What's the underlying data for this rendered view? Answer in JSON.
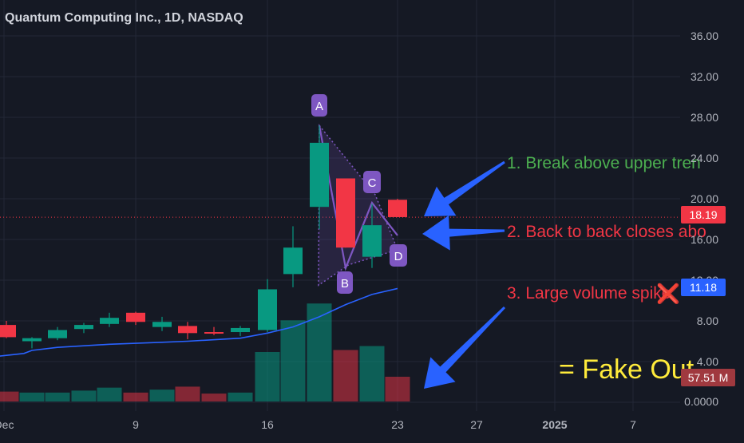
{
  "header": {
    "title": "Quantum Computing Inc., 1D, NASDAQ"
  },
  "colors": {
    "background": "#151924",
    "up": "#089981",
    "down": "#f23645",
    "ma": "#2962ff",
    "pattern": "#7e57c2",
    "arrow": "#2962ff",
    "annotation_green": "#4caf50",
    "annotation_red": "#f23645",
    "fake_out": "#ffeb3b"
  },
  "chart_data": {
    "type": "candlestick",
    "title": "Quantum Computing Inc., 1D, NASDAQ",
    "y_ticks": [
      "36.00",
      "32.00",
      "28.00",
      "24.00",
      "20.00",
      "16.00",
      "12.00",
      "8.00",
      "4.00",
      "0.0000"
    ],
    "x_ticks": [
      "Dec",
      "9",
      "16",
      "23",
      "27",
      "2025",
      "7"
    ],
    "ylim": [
      0,
      38
    ],
    "grid": true,
    "candles": [
      {
        "date": "Dec 5",
        "open": 7.6,
        "high": 8.0,
        "low": 6.3,
        "close": 6.4
      },
      {
        "date": "Dec 6",
        "open": 6.0,
        "high": 6.4,
        "low": 5.3,
        "close": 6.3
      },
      {
        "date": "Dec 9",
        "open": 6.3,
        "high": 7.4,
        "low": 6.1,
        "close": 7.1
      },
      {
        "date": "Dec 10",
        "open": 7.2,
        "high": 7.8,
        "low": 6.8,
        "close": 7.6
      },
      {
        "date": "Dec 11",
        "open": 7.7,
        "high": 8.8,
        "low": 7.4,
        "close": 8.3
      },
      {
        "date": "Dec 12",
        "open": 8.8,
        "high": 8.9,
        "low": 7.6,
        "close": 7.9
      },
      {
        "date": "Dec 13",
        "open": 7.4,
        "high": 8.4,
        "low": 7.0,
        "close": 7.9
      },
      {
        "date": "Dec 16",
        "open": 7.5,
        "high": 7.9,
        "low": 6.2,
        "close": 6.8
      },
      {
        "date": "Dec 17",
        "open": 6.9,
        "high": 7.4,
        "low": 6.6,
        "close": 6.8
      },
      {
        "date": "Dec 18",
        "open": 6.9,
        "high": 7.5,
        "low": 6.5,
        "close": 7.3
      },
      {
        "date": "Dec 19",
        "open": 7.1,
        "high": 12.1,
        "low": 6.9,
        "close": 11.1
      },
      {
        "date": "Dec 20",
        "open": 12.6,
        "high": 17.3,
        "low": 11.3,
        "close": 15.2
      },
      {
        "date": "Dec 23",
        "open": 19.2,
        "high": 27.2,
        "low": 17.0,
        "close": 25.5
      },
      {
        "date": "Dec 24",
        "open": 22.0,
        "high": 22.0,
        "low": 15.2,
        "close": 15.2
      },
      {
        "date": "Dec 26",
        "open": 14.3,
        "high": 19.5,
        "low": 13.2,
        "close": 17.4
      },
      {
        "date": "Dec 27",
        "open": 19.9,
        "high": 20.0,
        "low": 18.2,
        "close": 18.2
      }
    ],
    "volume": [
      {
        "date": "Dec 5",
        "value": 1.0,
        "up": false
      },
      {
        "date": "Dec 6",
        "value": 0.9,
        "up": true
      },
      {
        "date": "Dec 9",
        "value": 0.9,
        "up": true
      },
      {
        "date": "Dec 10",
        "value": 1.1,
        "up": true
      },
      {
        "date": "Dec 11",
        "value": 1.4,
        "up": true
      },
      {
        "date": "Dec 12",
        "value": 0.9,
        "up": false
      },
      {
        "date": "Dec 13",
        "value": 1.2,
        "up": true
      },
      {
        "date": "Dec 16",
        "value": 1.5,
        "up": false
      },
      {
        "date": "Dec 17",
        "value": 0.8,
        "up": false
      },
      {
        "date": "Dec 18",
        "value": 0.9,
        "up": true
      },
      {
        "date": "Dec 19",
        "value": 5.0,
        "up": true
      },
      {
        "date": "Dec 20",
        "value": 8.2,
        "up": true
      },
      {
        "date": "Dec 23",
        "value": 9.9,
        "up": true
      },
      {
        "date": "Dec 24",
        "value": 5.2,
        "up": false
      },
      {
        "date": "Dec 26",
        "value": 5.6,
        "up": true
      },
      {
        "date": "Dec 27",
        "value": 2.5,
        "up": false
      }
    ],
    "moving_average": [
      {
        "date": "Dec 2",
        "value": 4.5
      },
      {
        "date": "Dec 4",
        "value": 4.8
      },
      {
        "date": "Dec 6",
        "value": 5.1
      },
      {
        "date": "Dec 9",
        "value": 5.4
      },
      {
        "date": "Dec 11",
        "value": 5.7
      },
      {
        "date": "Dec 13",
        "value": 5.9
      },
      {
        "date": "Dec 16",
        "value": 6.0
      },
      {
        "date": "Dec 18",
        "value": 6.3
      },
      {
        "date": "Dec 19",
        "value": 6.8
      },
      {
        "date": "Dec 20",
        "value": 7.4
      },
      {
        "date": "Dec 23",
        "value": 8.4
      },
      {
        "date": "Dec 24",
        "value": 9.6
      },
      {
        "date": "Dec 26",
        "value": 10.6
      },
      {
        "date": "Dec 27",
        "value": 11.18
      }
    ],
    "price_label": "18.19",
    "ma_label": "11.18",
    "volume_label": "57.51 M",
    "pattern_points": {
      "A": {
        "date": "Dec 23",
        "value": 27.2
      },
      "B": {
        "date": "Dec 24",
        "value": 13.2
      },
      "C": {
        "date": "Dec 26",
        "value": 19.6
      },
      "D": {
        "date": "Dec 27",
        "value": 16.4
      }
    }
  },
  "annotations": {
    "point_a": "A",
    "point_b": "B",
    "point_c": "C",
    "point_d": "D",
    "note_1": "1. Break above upper tren",
    "note_2": "2. Back to back closes abo",
    "note_3": "3. Large volume spike",
    "cross": "❌",
    "fake_out": "= Fake Out"
  }
}
